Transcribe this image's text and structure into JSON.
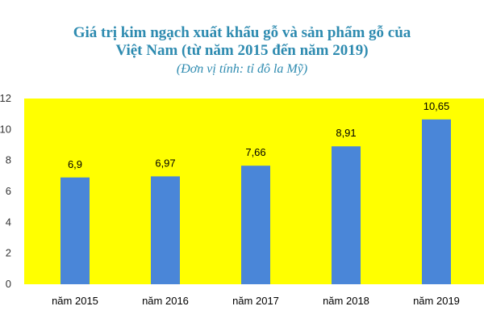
{
  "chart": {
    "title_line1": "Giá trị kim ngạch xuất khẩu gỗ và sản phẩm gỗ của",
    "title_line2": "Việt Nam (từ năm 2015 đến năm 2019)",
    "subtitle": "(Đơn vị tính: tỉ đô la Mỹ)"
  },
  "colors": {
    "plot_background": "#ffff00",
    "bar": "#4a86d8",
    "title": "#2e8bb0"
  },
  "chart_data": {
    "type": "bar",
    "title": "Giá trị kim ngạch xuất khẩu gỗ và sản phẩm gỗ của Việt Nam (từ năm 2015 đến năm 2019)",
    "subtitle": "(Đơn vị tính: tỉ đô la Mỹ)",
    "categories": [
      "năm 2015",
      "năm 2016",
      "năm 2017",
      "năm 2018",
      "năm 2019"
    ],
    "values": [
      6.9,
      6.97,
      7.66,
      8.91,
      10.65
    ],
    "value_labels": [
      "6,9",
      "6,97",
      "7,66",
      "8,91",
      "10,65"
    ],
    "yticks": [
      "0",
      "2",
      "4",
      "6",
      "8",
      "10",
      "12"
    ],
    "ylim": [
      0,
      12
    ],
    "xlabel": "",
    "ylabel": "",
    "grid": false,
    "legend": "none"
  }
}
